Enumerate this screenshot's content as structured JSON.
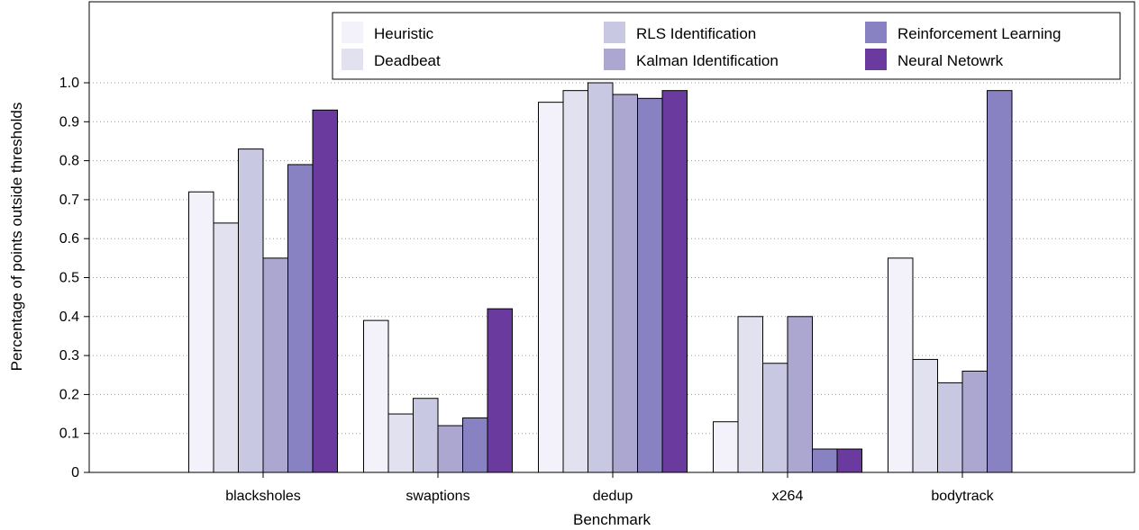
{
  "chart_data": {
    "type": "bar",
    "title": "",
    "xlabel": "Benchmark",
    "ylabel": "Percentage of points outside thresholds",
    "ylim": [
      0,
      1.0
    ],
    "yticks": [
      "0",
      "0.1",
      "0.2",
      "0.3",
      "0.4",
      "0.5",
      "0.6",
      "0.7",
      "0.8",
      "0.9",
      "1.0"
    ],
    "grid": "horizontal-dotted",
    "legend_position": "top-right",
    "categories": [
      "blacksholes",
      "swaptions",
      "dedup",
      "x264",
      "bodytrack"
    ],
    "series": [
      {
        "name": "Heuristic",
        "color": "#f3f1f9",
        "values": [
          0.72,
          0.39,
          0.95,
          0.13,
          0.55
        ]
      },
      {
        "name": "Deadbeat",
        "color": "#e2e1ef",
        "values": [
          0.64,
          0.15,
          0.98,
          0.4,
          0.29
        ]
      },
      {
        "name": "RLS Identification",
        "color": "#c8c8e3",
        "values": [
          0.83,
          0.19,
          1.0,
          0.28,
          0.23
        ]
      },
      {
        "name": "Kalman Identification",
        "color": "#aba7d0",
        "values": [
          0.55,
          0.12,
          0.97,
          0.4,
          0.26
        ]
      },
      {
        "name": "Reinforcement Learning",
        "color": "#8882c2",
        "values": [
          0.79,
          0.14,
          0.96,
          0.06,
          0.98
        ]
      },
      {
        "name": "Neural Netowrk",
        "color": "#6a3a9f",
        "values": [
          0.93,
          0.42,
          0.98,
          0.06,
          0.0
        ]
      }
    ]
  }
}
